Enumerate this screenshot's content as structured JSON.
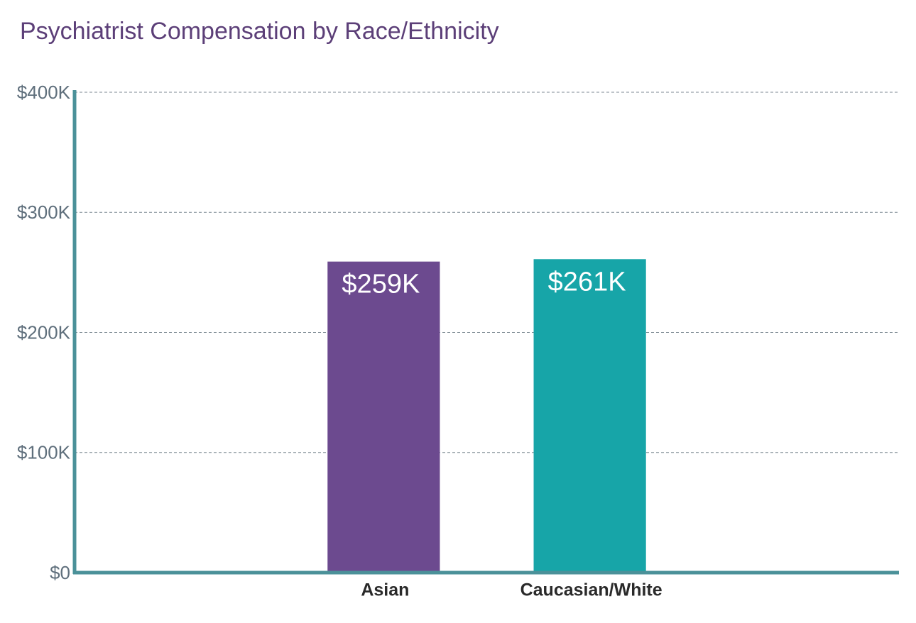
{
  "chart_data": {
    "type": "bar",
    "title": "Psychiatrist Compensation by Race/Ethnicity",
    "categories": [
      null,
      "Asian",
      "Caucasian/White",
      null
    ],
    "values": [
      null,
      259000,
      261000,
      null
    ],
    "value_labels": [
      null,
      "$259K",
      "$261K",
      null
    ],
    "colors": [
      null,
      "#6c4a8f",
      "#17a5a8",
      null
    ],
    "ylim": [
      0,
      400000
    ],
    "yticks": [
      {
        "value": 0,
        "label": "$0"
      },
      {
        "value": 100000,
        "label": "$100K"
      },
      {
        "value": 200000,
        "label": "$200K"
      },
      {
        "value": 300000,
        "label": "$300K"
      },
      {
        "value": 400000,
        "label": "$400K"
      }
    ],
    "grid": true
  }
}
